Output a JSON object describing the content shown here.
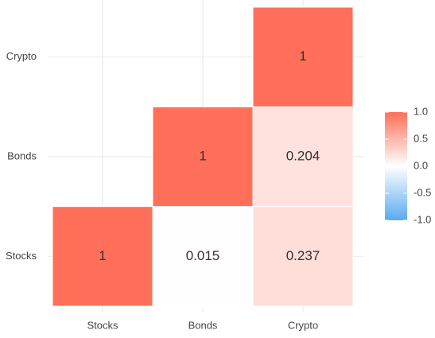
{
  "chart_data": {
    "type": "heatmap",
    "x_categories": [
      "Stocks",
      "Bonds",
      "Crypto"
    ],
    "y_categories": [
      "Stocks",
      "Bonds",
      "Crypto"
    ],
    "values": [
      [
        1,
        0.015,
        0.237
      ],
      [
        null,
        1,
        0.204
      ],
      [
        null,
        null,
        1
      ]
    ],
    "colors": {
      "low": "#5aaaf0",
      "mid": "#ffffff",
      "high": "#ff6f59"
    },
    "clim": [
      -1,
      1
    ],
    "cticks": [
      {
        "value": 1,
        "label": "1.0"
      },
      {
        "value": 0.5,
        "label": "0.5"
      },
      {
        "value": 0,
        "label": "0.0"
      },
      {
        "value": -0.5,
        "label": "-0.5"
      },
      {
        "value": -1,
        "label": "-1.0"
      }
    ],
    "grid": true
  }
}
